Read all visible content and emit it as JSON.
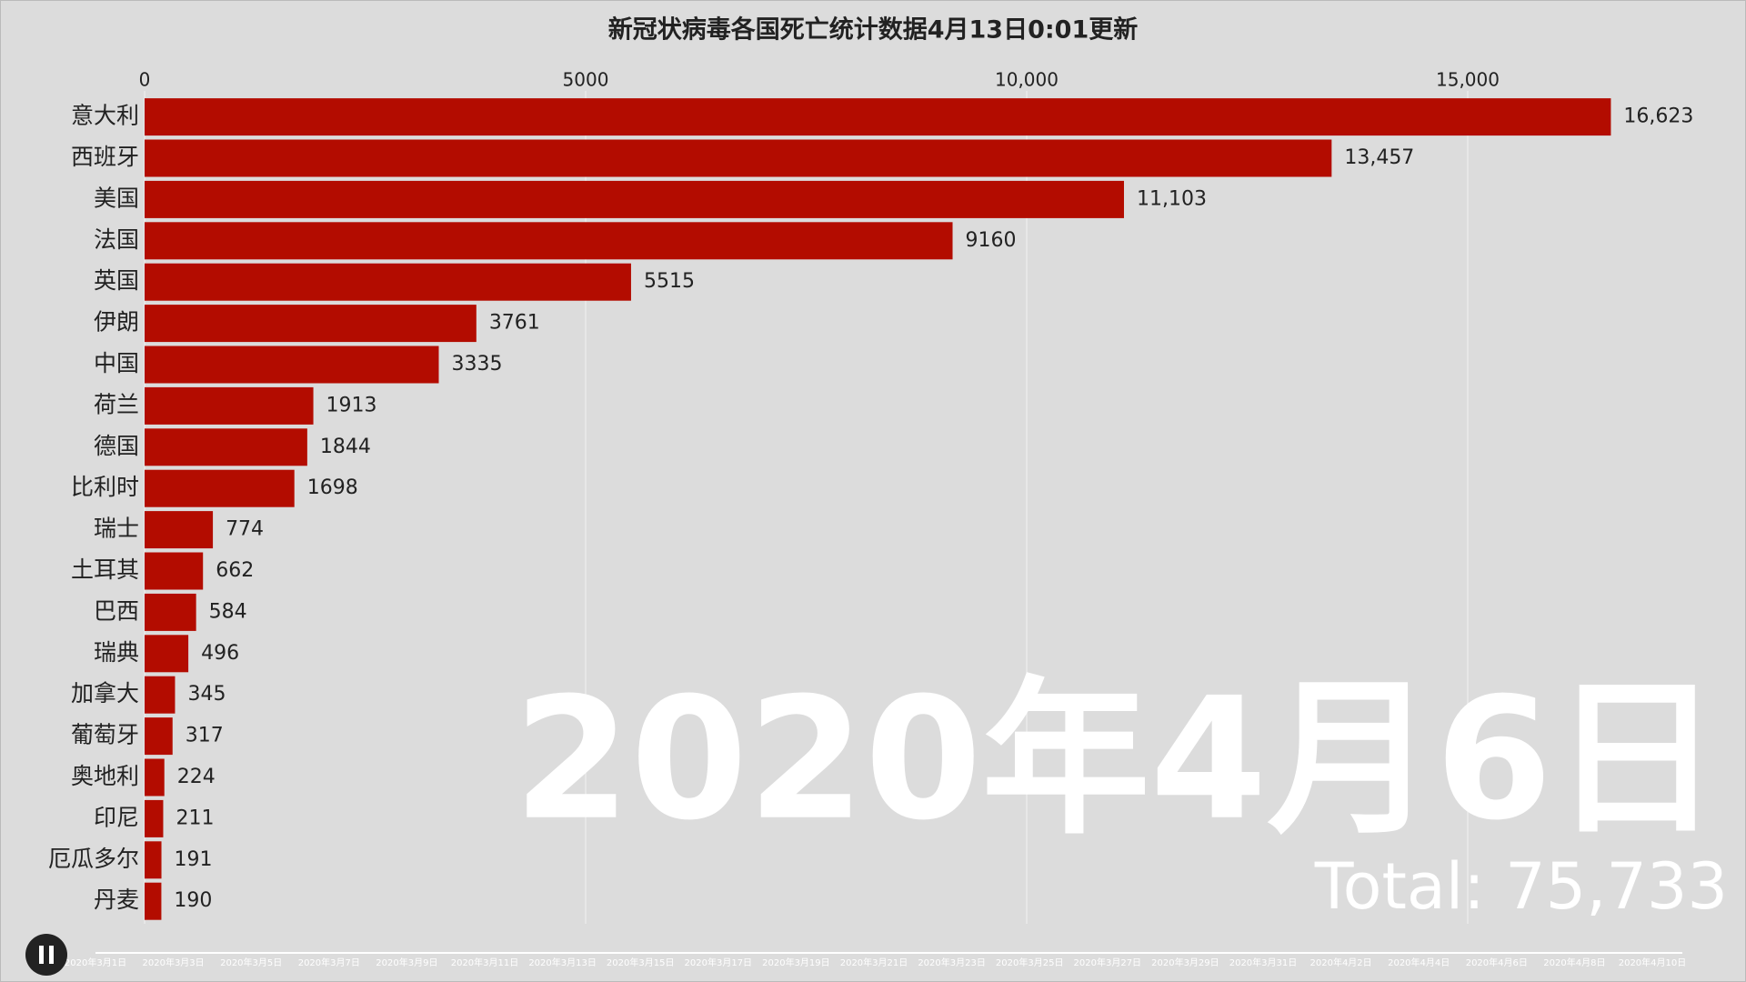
{
  "chart_data": {
    "type": "bar",
    "orientation": "horizontal",
    "title": "新冠状病毒各国死亡统计数据4月13日0:01更新",
    "categories": [
      "意大利",
      "西班牙",
      "美国",
      "法国",
      "英国",
      "伊朗",
      "中国",
      "荷兰",
      "德国",
      "比利时",
      "瑞士",
      "土耳其",
      "巴西",
      "瑞典",
      "加拿大",
      "葡萄牙",
      "奥地利",
      "印尼",
      "厄瓜多尔",
      "丹麦"
    ],
    "values": [
      16623,
      13457,
      11103,
      9160,
      5515,
      3761,
      3335,
      1913,
      1844,
      1698,
      774,
      662,
      584,
      496,
      345,
      317,
      224,
      211,
      191,
      190
    ],
    "value_labels": [
      "16,623",
      "13,457",
      "11,103",
      "9160",
      "5515",
      "3761",
      "3335",
      "1913",
      "1844",
      "1698",
      "774",
      "662",
      "584",
      "496",
      "345",
      "317",
      "224",
      "211",
      "191",
      "190"
    ],
    "color": "#b30c00",
    "xlim": [
      0,
      17000
    ],
    "xticks": [
      0,
      5000,
      {
        "value": 10000,
        "label": "10,000"
      },
      {
        "value": 15000,
        "label": "15,000"
      }
    ],
    "grid": true,
    "date_label": "2020年4月6日",
    "total_label": "Total: 75,733",
    "timeline": [
      "2020年3月1日",
      "2020年3月3日",
      "2020年3月5日",
      "2020年3月7日",
      "2020年3月9日",
      "2020年3月11日",
      "2020年3月13日",
      "2020年3月15日",
      "2020年3月17日",
      "2020年3月19日",
      "2020年3月21日",
      "2020年3月23日",
      "2020年3月25日",
      "2020年3月27日",
      "2020年3月29日",
      "2020年3月31日",
      "2020年4月2日",
      "2020年4月4日",
      "2020年4月6日",
      "2020年4月8日",
      "2020年4月10日"
    ]
  }
}
